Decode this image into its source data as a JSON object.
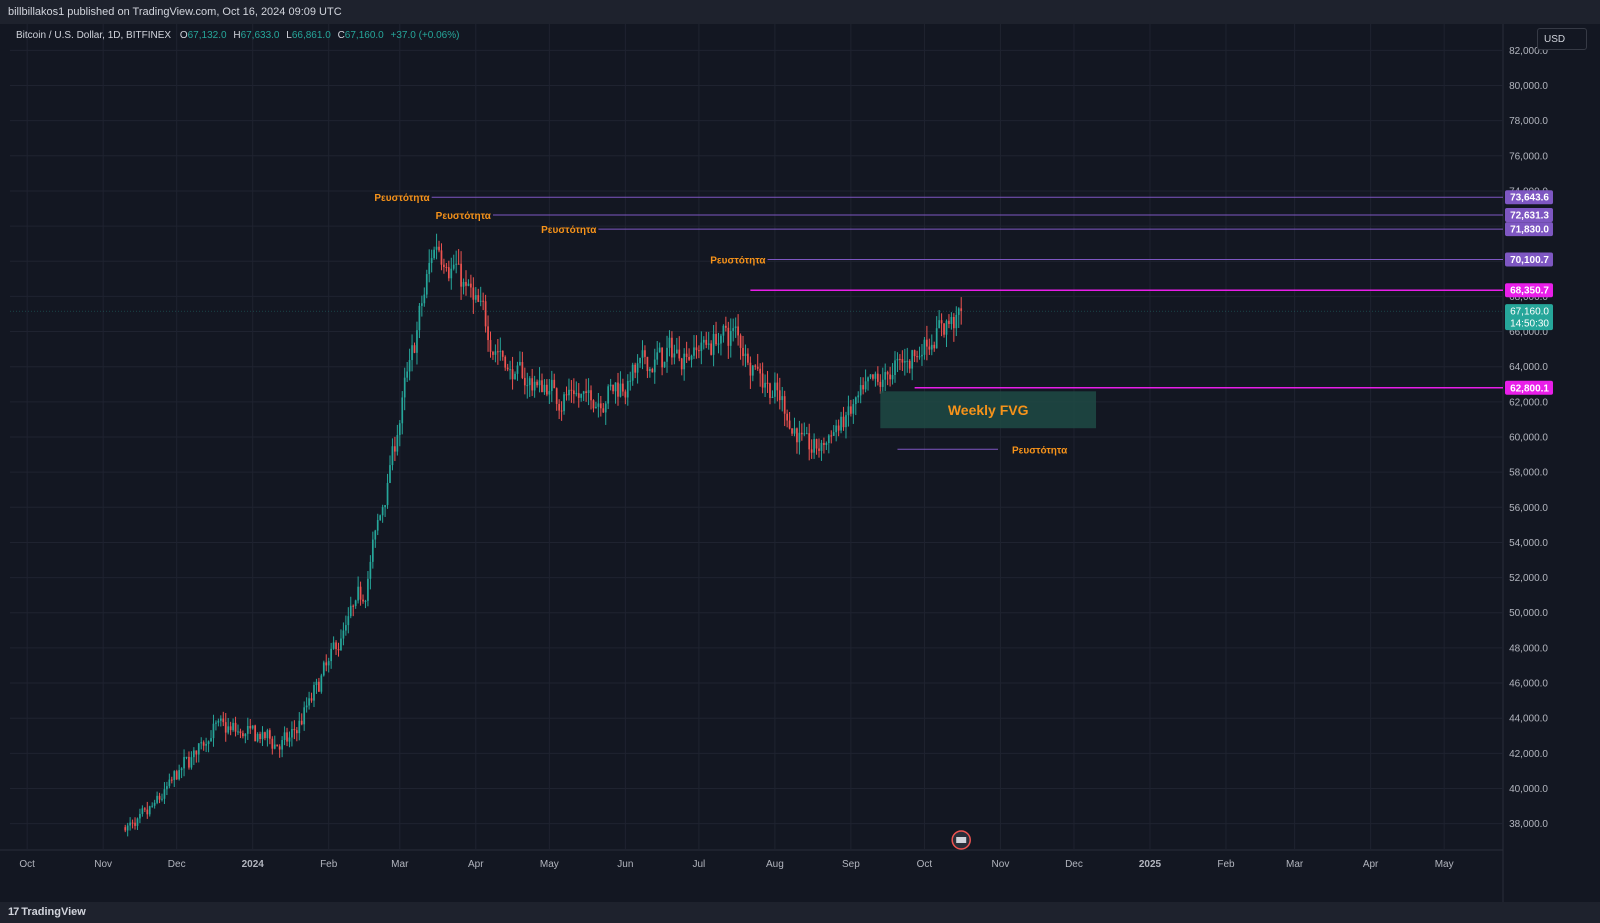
{
  "header": {
    "published": "billbillakos1 published on TradingView.com, Oct 16, 2024 09:09 UTC"
  },
  "legend": {
    "symbol": "Bitcoin / U.S. Dollar, 1D, BITFINEX",
    "o_label": "O",
    "o_value": "67,132.0",
    "h_label": "H",
    "h_value": "67,633.0",
    "l_label": "L",
    "l_value": "66,861.0",
    "c_label": "C",
    "c_value": "67,160.0",
    "change": "+37.0 (+0.06%)"
  },
  "currency_button": "USD",
  "footer": {
    "brand": "TradingView",
    "logo_glyph": "17"
  },
  "colors": {
    "background": "#131722",
    "up": "#26a69a",
    "down": "#ef5350",
    "purple": "#7e57c2",
    "magenta": "#e91ee9",
    "orange": "#f7931a",
    "fvg_fill": "#1f4a44",
    "current_price": "#26a69a"
  },
  "chart_data": {
    "type": "candlestick",
    "symbol": "BTCUSD",
    "interval": "1D",
    "y_range": [
      36500,
      83500
    ],
    "y_ticks": [
      "38,000.0",
      "40,000.0",
      "42,000.0",
      "44,000.0",
      "46,000.0",
      "48,000.0",
      "50,000.0",
      "52,000.0",
      "54,000.0",
      "56,000.0",
      "58,000.0",
      "60,000.0",
      "62,000.0",
      "64,000.0",
      "66,000.0",
      "68,000.0",
      "70,000.0",
      "72,000.0",
      "74,000.0",
      "76,000.0",
      "78,000.0",
      "80,000.0",
      "82,000.0"
    ],
    "x_ticks": [
      "Oct",
      "Nov",
      "Dec",
      "2024",
      "Feb",
      "Mar",
      "Apr",
      "May",
      "Jun",
      "Jul",
      "Aug",
      "Sep",
      "Oct",
      "Nov",
      "Dec",
      "2025",
      "Feb",
      "Mar",
      "Apr",
      "May"
    ],
    "x_range": [
      "2023-09-24",
      "2025-05-25"
    ],
    "grid": true,
    "price_path_monthly": [
      {
        "month": "2023-11",
        "price": 37800
      },
      {
        "month": "2023-12",
        "price": 43500
      },
      {
        "month": "2024-01",
        "price": 42500
      },
      {
        "month": "2024-02",
        "price": 51500
      },
      {
        "month": "2024-03",
        "price": 71500
      },
      {
        "month": "2024-04",
        "price": 63500
      },
      {
        "month": "2024-05",
        "price": 62000
      },
      {
        "month": "2024-06",
        "price": 64500
      },
      {
        "month": "2024-07",
        "price": 66000
      },
      {
        "month": "2024-08",
        "price": 59000
      },
      {
        "month": "2024-09",
        "price": 63500
      },
      {
        "month": "2024-10",
        "price": 67160
      }
    ],
    "levels": [
      {
        "price": 73643.6,
        "label": "73,643.6",
        "color": "purple",
        "from": "2024-03-14",
        "annotation": "Ρευστότητα"
      },
      {
        "price": 72631.3,
        "label": "72,631.3",
        "color": "purple",
        "from": "2024-04-08",
        "annotation": "Ρευστότητα"
      },
      {
        "price": 71830.0,
        "label": "71,830.0",
        "color": "purple",
        "from": "2024-05-21",
        "annotation": "Ρευστότητα"
      },
      {
        "price": 70100.7,
        "label": "70,100.7",
        "color": "purple",
        "from": "2024-07-29",
        "annotation": "Ρευστότητα"
      },
      {
        "price": 68350.7,
        "label": "68,350.7",
        "color": "magenta",
        "from": "2024-07-22",
        "annotation": ""
      },
      {
        "price": 62800.1,
        "label": "62,800.1",
        "color": "magenta",
        "from": "2024-09-27",
        "annotation": ""
      }
    ],
    "support_line": {
      "price": 59300,
      "from": "2024-09-20",
      "to": "2024-10-31",
      "annotation": "Ρευστότητα"
    },
    "fvg_zone": {
      "label": "Weekly FVG",
      "from": "2024-09-13",
      "to": "2024-12-10",
      "top": 62600,
      "bottom": 60500
    },
    "current_price": {
      "value": "67,160.0",
      "countdown": "14:50:30"
    }
  }
}
